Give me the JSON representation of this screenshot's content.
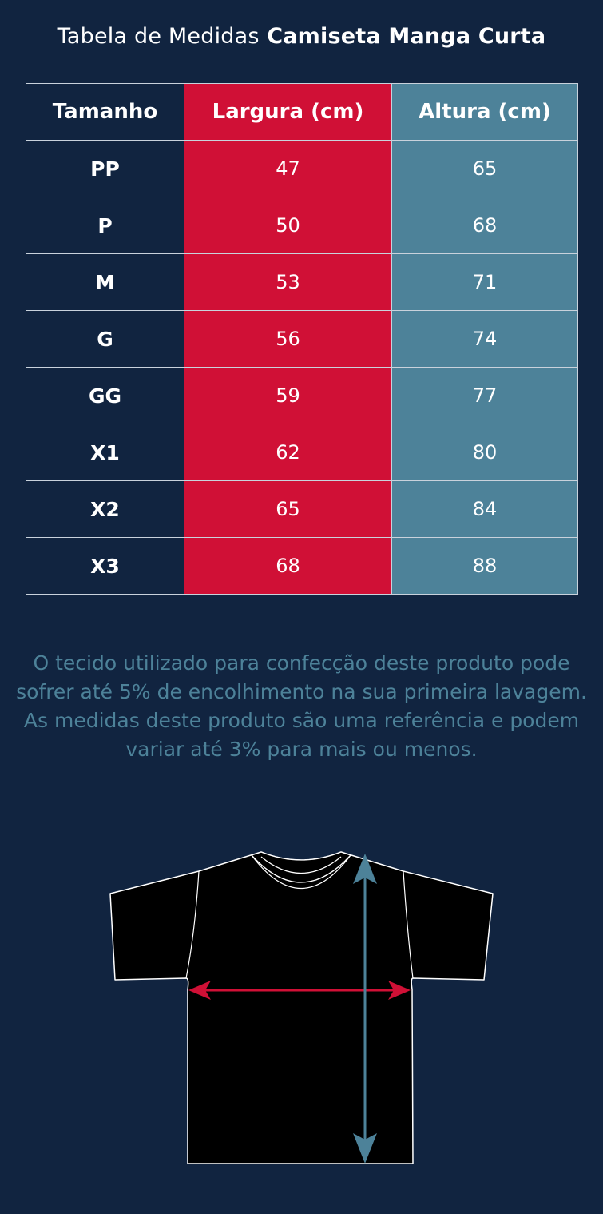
{
  "title": {
    "prefix": "Tabela de Medidas",
    "product": "Camiseta Manga Curta"
  },
  "table": {
    "headers": [
      "Tamanho",
      "Largura (cm)",
      "Altura (cm)"
    ],
    "rows": [
      {
        "size": "PP",
        "width": "47",
        "height": "65"
      },
      {
        "size": "P",
        "width": "50",
        "height": "68"
      },
      {
        "size": "M",
        "width": "53",
        "height": "71"
      },
      {
        "size": "G",
        "width": "56",
        "height": "74"
      },
      {
        "size": "GG",
        "width": "59",
        "height": "77"
      },
      {
        "size": "X1",
        "width": "62",
        "height": "80"
      },
      {
        "size": "X2",
        "width": "65",
        "height": "84"
      },
      {
        "size": "X3",
        "width": "68",
        "height": "88"
      }
    ]
  },
  "note": "O tecido utilizado para confecção deste produto pode sofrer até 5% de encolhimento na sua primeira lavagem. As medidas deste produto são uma referência e podem variar até 3% para mais ou menos.",
  "colors": {
    "background": "#112440",
    "width_column": "#d01036",
    "height_column": "#4d8299",
    "shirt": "#000000",
    "width_arrow": "#d01036",
    "height_arrow": "#4d8299"
  },
  "illustration": {
    "shirt_icon": "tshirt-icon",
    "width_arrow_icon": "horizontal-double-arrow-icon",
    "height_arrow_icon": "vertical-double-arrow-icon"
  }
}
